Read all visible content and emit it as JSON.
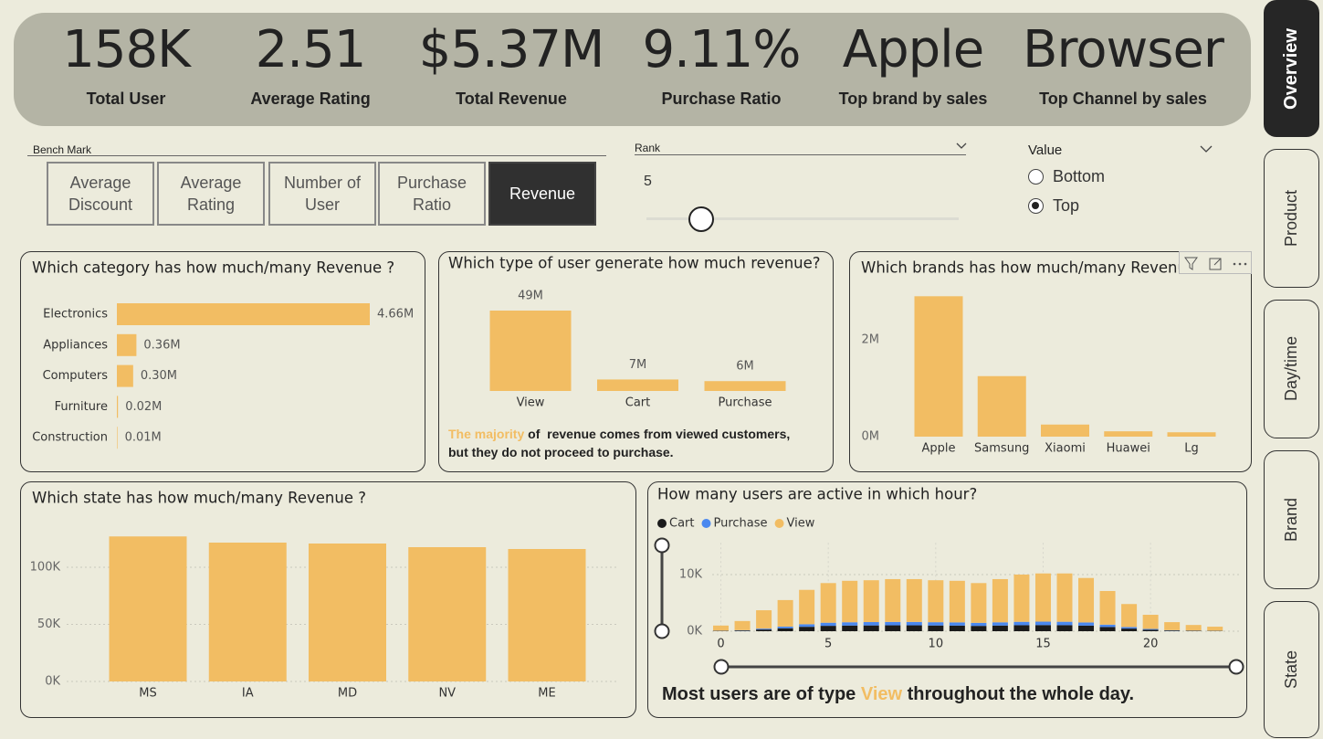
{
  "kpis": [
    {
      "value": "158K",
      "label": "Total User"
    },
    {
      "value": "2.51",
      "label": "Average Rating"
    },
    {
      "value": "$5.37M",
      "label": "Total Revenue"
    },
    {
      "value": "9.11%",
      "label": "Purchase Ratio"
    },
    {
      "value": "Apple",
      "label": "Top brand by sales"
    },
    {
      "value": "Browser",
      "label": "Top Channel by sales"
    }
  ],
  "bench_mark": {
    "title": "Bench Mark",
    "options": [
      "Average Discount",
      "Average Rating",
      "Number of User",
      "Purchase Ratio",
      "Revenue"
    ],
    "selected": 4
  },
  "rank": {
    "title": "Rank",
    "value": 5
  },
  "value_filter": {
    "title": "Value",
    "options": [
      "Bottom",
      "Top"
    ],
    "selected": 1
  },
  "nav": {
    "tabs": [
      "Overview",
      "Product",
      "Day/time",
      "Brand",
      "State"
    ],
    "active": 0
  },
  "chart_data": [
    {
      "type": "bar",
      "orientation": "horizontal",
      "title": "Which category has how much/many Revenue ?",
      "categories": [
        "Electronics",
        "Appliances",
        "Computers",
        "Furniture",
        "Construction"
      ],
      "values": [
        4.66,
        0.36,
        0.3,
        0.02,
        0.01
      ],
      "value_labels": [
        "4.66M",
        "0.36M",
        "0.30M",
        "0.02M",
        "0.01M"
      ],
      "color": "#f2bd63"
    },
    {
      "type": "bar",
      "title": "Which type of user generate how much revenue?",
      "categories": [
        "View",
        "Cart",
        "Purchase"
      ],
      "values": [
        49,
        7,
        6
      ],
      "value_labels": [
        "49M",
        "7M",
        "6M"
      ],
      "color": "#f2bd63",
      "highlight_color": "#f2bd63",
      "annotation": [
        [
          {
            "text": "The majority",
            "highlight": true
          },
          {
            "text": " of  revenue comes from viewed customers,"
          }
        ],
        [
          {
            "text": "but they do not proceed to purchase."
          }
        ]
      ]
    },
    {
      "type": "bar",
      "title": "Which brands has how much/many Revenue ?",
      "categories": [
        "Apple",
        "Samsung",
        "Xiaomi",
        "Huawei",
        "Lg"
      ],
      "values": [
        2900000,
        1250000,
        250000,
        110000,
        90000
      ],
      "color": "#f2bd63",
      "ylim": [
        0,
        3000000
      ],
      "yticks": [
        {
          "value": 0,
          "label": "0M"
        },
        {
          "value": 2000000,
          "label": "2M"
        }
      ],
      "grid": false
    },
    {
      "type": "bar",
      "title": "Which state has how much/many Revenue ?",
      "categories": [
        "MS",
        "IA",
        "MD",
        "NV",
        "ME"
      ],
      "values": [
        127000,
        121600,
        120800,
        117600,
        116000
      ],
      "color": "#f2bd63",
      "ylim": [
        0,
        130000
      ],
      "yticks": [
        {
          "value": 0,
          "label": "0K"
        },
        {
          "value": 50000,
          "label": "50K"
        },
        {
          "value": 100000,
          "label": "100K"
        }
      ],
      "grid": true
    },
    {
      "type": "bar",
      "stacked": true,
      "title": "How many users are active in which hour?",
      "x": [
        0,
        1,
        2,
        3,
        4,
        5,
        6,
        7,
        8,
        9,
        10,
        11,
        12,
        13,
        14,
        15,
        16,
        17,
        18,
        19,
        20,
        21,
        22,
        23
      ],
      "series": [
        {
          "name": "Cart",
          "color": "#1b1b1b",
          "values": [
            60,
            120,
            300,
            520,
            780,
            950,
            1000,
            1020,
            1040,
            1040,
            1010,
            990,
            940,
            1000,
            1060,
            1080,
            1070,
            990,
            740,
            470,
            260,
            120,
            70,
            50
          ]
        },
        {
          "name": "Purchase",
          "color": "#4a88ef",
          "values": [
            30,
            60,
            160,
            300,
            450,
            550,
            580,
            590,
            600,
            600,
            580,
            570,
            540,
            570,
            600,
            610,
            600,
            560,
            420,
            260,
            140,
            60,
            40,
            25
          ]
        },
        {
          "name": "View",
          "color": "#f2bd63",
          "values": [
            910,
            1620,
            3240,
            4680,
            6070,
            7000,
            7320,
            7390,
            7560,
            7560,
            7410,
            7340,
            7020,
            7630,
            8340,
            8510,
            8530,
            7850,
            5940,
            4070,
            2500,
            1420,
            990,
            725
          ]
        }
      ],
      "xlim": [
        -1,
        24.5
      ],
      "xticks": [
        0,
        5,
        10,
        15,
        20
      ],
      "ylim": [
        0,
        14000
      ],
      "yticks": [
        {
          "value": 0,
          "label": "0K"
        },
        {
          "value": 10000,
          "label": "10K"
        }
      ],
      "grid": true,
      "legend": "top-left",
      "highlight_color": "#f2bd63",
      "footer": [
        {
          "text": "Most users are of type "
        },
        {
          "text": "View",
          "highlight": true
        },
        {
          "text": " throughout the whole day."
        }
      ]
    }
  ]
}
